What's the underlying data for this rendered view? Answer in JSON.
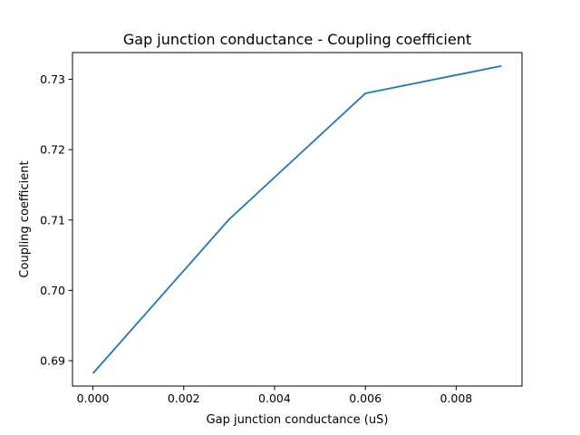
{
  "chart_data": {
    "type": "line",
    "title": "Gap junction conductance - Coupling coefficient",
    "xlabel": "Gap junction conductance (uS)",
    "ylabel": "Coupling coefficient",
    "x": [
      0.0,
      0.003,
      0.006,
      0.009
    ],
    "series": [
      {
        "values": [
          0.6882,
          0.7101,
          0.728,
          0.7319
        ],
        "color": "#1f77b4"
      }
    ],
    "xlim": [
      -0.00045,
      0.00945
    ],
    "ylim": [
      0.6864,
      0.7338
    ],
    "xticks": [
      0.0,
      0.002,
      0.004,
      0.006,
      0.008
    ],
    "xtick_labels": [
      "0.000",
      "0.002",
      "0.004",
      "0.006",
      "0.008"
    ],
    "yticks": [
      0.69,
      0.7,
      0.71,
      0.72,
      0.73
    ],
    "ytick_labels": [
      "0.69",
      "0.70",
      "0.71",
      "0.72",
      "0.73"
    ],
    "grid": false,
    "legend": false
  }
}
